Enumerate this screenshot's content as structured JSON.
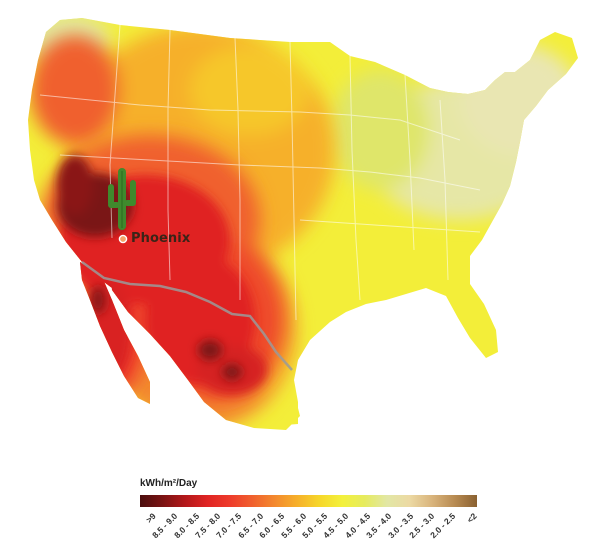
{
  "map": {
    "city": {
      "name": "Phoenix"
    },
    "icons": [
      "cactus-icon",
      "city-marker-icon"
    ],
    "colors": {
      "ocean": "#ffffff",
      "border": "#ffffff",
      "mexico_border": "#9a9a9a"
    }
  },
  "legend": {
    "title": "kWh/m²/Day",
    "ticks": [
      ">9",
      "8.5 - 9.0",
      "8.0 - 8.5",
      "7.5 - 8.0",
      "7.0 - 7.5",
      "6.5 - 7.0",
      "6.0 - 6.5",
      "5.5 - 6.0",
      "5.0 - 5.5",
      "4.5 - 5.0",
      "4.0 - 4.5",
      "3.5 - 4.0",
      "3.0 - 3.5",
      "2.5 - 3.0",
      "2.0 - 2.5",
      "<2"
    ],
    "colors": [
      "#4a0d0d",
      "#7a1313",
      "#b3181a",
      "#e02423",
      "#ee3b2b",
      "#f0602e",
      "#f3892e",
      "#f6b02a",
      "#f6d72a",
      "#f3f13c",
      "#e6eb5e",
      "#e2e7a5",
      "#ecd9a3",
      "#d9b47c",
      "#b88b52",
      "#8a6131"
    ]
  }
}
